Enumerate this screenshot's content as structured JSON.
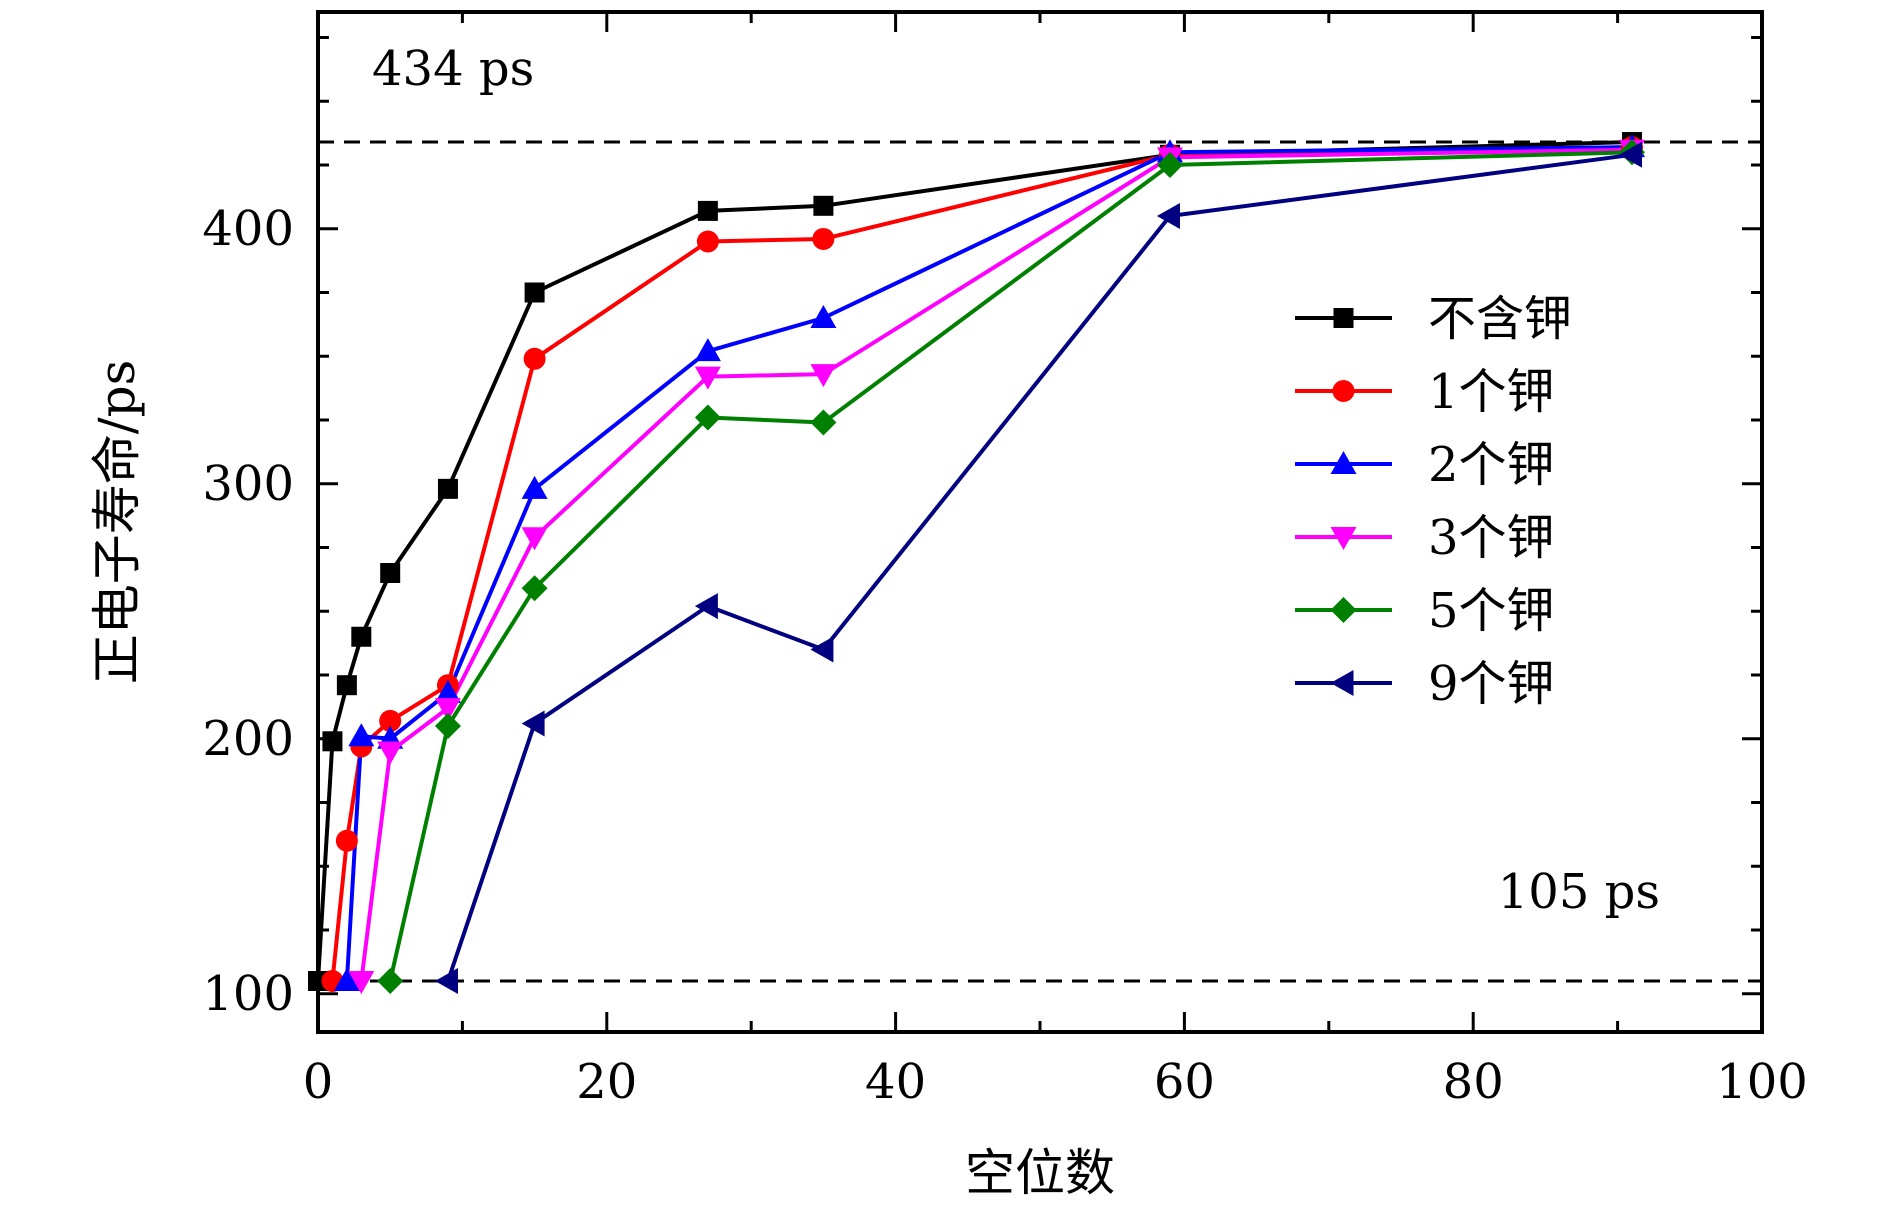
{
  "chart_data": {
    "type": "line",
    "xlabel": "空位数",
    "ylabel": "正电子寿命/ps",
    "xlim": [
      0,
      100
    ],
    "ylim": [
      85,
      485
    ],
    "xticks": [
      0,
      20,
      40,
      60,
      80,
      100
    ],
    "yticks": [
      100,
      200,
      300,
      400
    ],
    "grid": false,
    "legend_position": "right-middle",
    "reference_lines": [
      {
        "y": 434,
        "label": "434 ps",
        "style": "dashed",
        "color": "#000000"
      },
      {
        "y": 105,
        "label": "105 ps",
        "style": "dashed",
        "color": "#000000"
      }
    ],
    "series": [
      {
        "name": "不含钾",
        "color": "#000000",
        "marker": "square",
        "x": [
          0,
          1,
          2,
          3,
          5,
          9,
          15,
          27,
          35,
          59,
          91
        ],
        "y": [
          105,
          199,
          221,
          240,
          265,
          298,
          375,
          407,
          409,
          429,
          434
        ]
      },
      {
        "name": "1个钾",
        "color": "#ff0000",
        "marker": "circle",
        "x": [
          1,
          2,
          3,
          5,
          9,
          15,
          27,
          35,
          59,
          91
        ],
        "y": [
          105,
          160,
          197,
          207,
          221,
          349,
          395,
          396,
          429,
          432
        ]
      },
      {
        "name": "2个钾",
        "color": "#0000ff",
        "marker": "triangle-up",
        "x": [
          2,
          3,
          5,
          9,
          15,
          27,
          35,
          59,
          91
        ],
        "y": [
          105,
          201,
          200,
          218,
          298,
          352,
          365,
          430,
          432
        ]
      },
      {
        "name": "3个钾",
        "color": "#ff00ff",
        "marker": "triangle-down",
        "x": [
          3,
          5,
          9,
          15,
          27,
          35,
          59,
          91
        ],
        "y": [
          105,
          195,
          212,
          279,
          342,
          343,
          428,
          431
        ]
      },
      {
        "name": "5个钾",
        "color": "#008000",
        "marker": "diamond",
        "x": [
          5,
          9,
          15,
          27,
          35,
          59,
          91
        ],
        "y": [
          105,
          205,
          259,
          326,
          324,
          425,
          430
        ]
      },
      {
        "name": "9个钾",
        "color": "#000080",
        "marker": "triangle-left",
        "x": [
          9,
          15,
          27,
          35,
          59,
          91
        ],
        "y": [
          105,
          206,
          252,
          235,
          405,
          429
        ]
      }
    ]
  }
}
